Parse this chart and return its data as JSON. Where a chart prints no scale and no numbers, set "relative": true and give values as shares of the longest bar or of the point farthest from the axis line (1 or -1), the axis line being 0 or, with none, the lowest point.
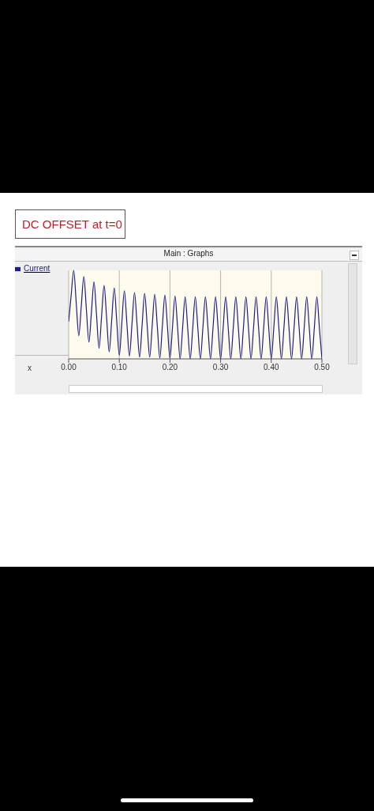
{
  "chart_data": {
    "type": "line",
    "title": "DC OFFSET at t=0",
    "subtitle": "Main : Graphs",
    "annotations": [
      "x"
    ],
    "relative": true,
    "x": [
      0,
      0.005,
      0.01,
      0.015,
      0.02,
      0.025,
      0.03,
      0.035,
      0.04,
      0.045,
      0.05,
      0.055,
      0.06,
      0.065,
      0.07,
      0.075,
      0.08,
      0.085,
      0.09,
      0.095,
      0.1,
      0.105,
      0.11,
      0.115,
      0.12,
      0.125,
      0.13,
      0.135,
      0.14,
      0.145,
      0.15,
      0.155,
      0.16,
      0.165,
      0.17,
      0.175,
      0.18,
      0.185,
      0.19,
      0.195,
      0.2,
      0.205,
      0.21,
      0.215,
      0.22,
      0.225,
      0.23,
      0.235,
      0.24,
      0.245,
      0.25,
      0.255,
      0.26,
      0.265,
      0.27,
      0.275,
      0.28,
      0.285,
      0.29,
      0.295,
      0.3,
      0.305,
      0.31,
      0.315,
      0.32,
      0.325,
      0.33,
      0.335,
      0.34,
      0.345,
      0.35,
      0.355,
      0.36,
      0.365,
      0.37,
      0.375,
      0.38,
      0.385,
      0.39,
      0.395,
      0.4,
      0.405,
      0.41,
      0.415,
      0.42,
      0.425,
      0.43,
      0.435,
      0.44,
      0.445,
      0.45,
      0.455,
      0.46,
      0.465,
      0.47,
      0.475,
      0.48,
      0.485,
      0.49,
      0.495,
      0.5
    ],
    "series": [
      {
        "name": "Current",
        "color": "#1c1c8c",
        "values": [
          0.42,
          0.72,
          1.0,
          0.63,
          0.26,
          0.6,
          0.93,
          0.56,
          0.19,
          0.53,
          0.87,
          0.5,
          0.12,
          0.48,
          0.83,
          0.46,
          0.08,
          0.44,
          0.8,
          0.42,
          0.04,
          0.41,
          0.77,
          0.4,
          0.03,
          0.39,
          0.75,
          0.39,
          0.02,
          0.38,
          0.74,
          0.38,
          0.02,
          0.38,
          0.73,
          0.37,
          0.01,
          0.37,
          0.72,
          0.37,
          0.01,
          0.36,
          0.71,
          0.36,
          0,
          0.35,
          0.7,
          0.35,
          0,
          0.35,
          0.7,
          0.35,
          0,
          0.35,
          0.7,
          0.35,
          0,
          0.35,
          0.7,
          0.35,
          0,
          0.35,
          0.7,
          0.35,
          0,
          0.35,
          0.7,
          0.35,
          0,
          0.35,
          0.7,
          0.35,
          0,
          0.35,
          0.7,
          0.35,
          0,
          0.35,
          0.7,
          0.35,
          0,
          0.35,
          0.7,
          0.35,
          0,
          0.35,
          0.7,
          0.35,
          0,
          0.35,
          0.7,
          0.35,
          0,
          0.35,
          0.7,
          0.35,
          0,
          0.35,
          0.7,
          0.35,
          0
        ]
      }
    ],
    "xlim": [
      0,
      0.5
    ],
    "xticks": [
      {
        "value": 0,
        "label": "0.00"
      },
      {
        "value": 0.1,
        "label": "0.10"
      },
      {
        "value": 0.2,
        "label": "0.20"
      },
      {
        "value": 0.3,
        "label": "0.30"
      },
      {
        "value": 0.4,
        "label": "0.40"
      },
      {
        "value": 0.5,
        "label": "0.50"
      }
    ],
    "grid": "x",
    "legend": "left",
    "marker": "none",
    "line_style": "solid"
  }
}
